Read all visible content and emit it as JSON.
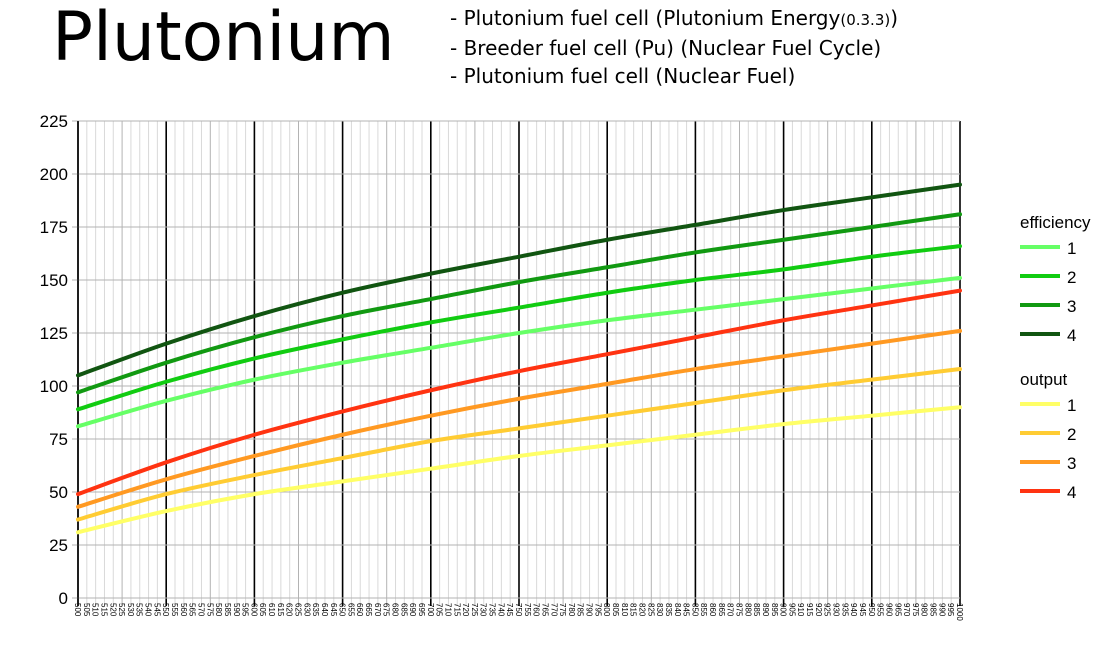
{
  "header": {
    "title": "Plutonium",
    "lines": [
      {
        "text": "- Plutonium fuel cell (Plutonium Energy",
        "small": "(0.3.3)",
        "tail": ")"
      },
      {
        "text": "- Breeder fuel cell (Pu) (Nuclear Fuel Cycle)",
        "small": "",
        "tail": ""
      },
      {
        "text": "- Plutonium fuel cell (Nuclear Fuel)",
        "small": "",
        "tail": ""
      }
    ]
  },
  "colors": {
    "efficiency": [
      "#66ff66",
      "#11cc11",
      "#119911",
      "#115511"
    ],
    "output": [
      "#ffff66",
      "#ffcc33",
      "#ff9922",
      "#ff3311"
    ],
    "major_grid": "#000000",
    "minor_grid": "#d9d9d9",
    "mid_grid": "#b3b3b3"
  },
  "chart_data": {
    "type": "line",
    "title": "",
    "xlabel": "",
    "ylabel": "",
    "xlim": [
      500,
      1000
    ],
    "ylim": [
      0,
      225
    ],
    "yticks": [
      0,
      25,
      50,
      75,
      100,
      125,
      150,
      175,
      200,
      225
    ],
    "x_tick_step": 5,
    "x_major_step": 50,
    "grid": true,
    "legend_placement": "right",
    "x": [
      500,
      550,
      600,
      650,
      700,
      750,
      800,
      850,
      900,
      950,
      1000
    ],
    "groups": [
      {
        "name": "efficiency",
        "series": [
          {
            "name": "1",
            "values": [
              81,
              93,
              103,
              111,
              118,
              125,
              131,
              136,
              141,
              146,
              151
            ]
          },
          {
            "name": "2",
            "values": [
              89,
              102,
              113,
              122,
              130,
              137,
              144,
              150,
              155,
              161,
              166
            ]
          },
          {
            "name": "3",
            "values": [
              97,
              111,
              123,
              133,
              141,
              149,
              156,
              163,
              169,
              175,
              181
            ]
          },
          {
            "name": "4",
            "values": [
              105,
              120,
              133,
              144,
              153,
              161,
              169,
              176,
              183,
              189,
              195
            ]
          }
        ]
      },
      {
        "name": "output",
        "series": [
          {
            "name": "1",
            "values": [
              31,
              41,
              49,
              55,
              61,
              67,
              72,
              77,
              82,
              86,
              90
            ]
          },
          {
            "name": "2",
            "values": [
              37,
              49,
              58,
              66,
              74,
              80,
              86,
              92,
              98,
              103,
              108
            ]
          },
          {
            "name": "3",
            "values": [
              43,
              56,
              67,
              77,
              86,
              94,
              101,
              108,
              114,
              120,
              126
            ]
          },
          {
            "name": "4",
            "values": [
              49,
              64,
              77,
              88,
              98,
              107,
              115,
              123,
              131,
              138,
              145
            ]
          }
        ]
      }
    ]
  }
}
